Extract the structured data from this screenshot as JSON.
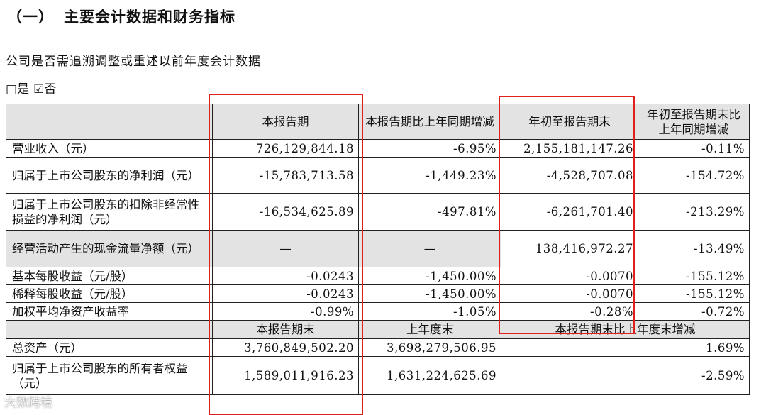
{
  "heading": {
    "number": "（一）",
    "title": "主要会计数据和财务指标"
  },
  "question": "公司是否需追溯调整或重述以前年度会计数据",
  "options": {
    "yes": "□是",
    "no": "☑否"
  },
  "table": {
    "header": [
      "",
      "本报告期",
      "本报告期比上年同期增减",
      "年初至报告期末",
      "年初至报告期末比上年同期增减"
    ],
    "rows": [
      [
        "营业收入（元）",
        "726,129,844.18",
        "-6.95%",
        "2,155,181,147.26",
        "-0.11%"
      ],
      [
        "归属于上市公司股东的净利润（元）",
        "-15,783,713.58",
        "-1,449.23%",
        "-4,528,707.08",
        "-154.72%"
      ],
      [
        "归属于上市公司股东的扣除非经常性损益的净利润（元）",
        "-16,534,625.89",
        "-497.81%",
        "-6,261,701.40",
        "-213.29%"
      ],
      [
        "经营活动产生的现金流量净额（元）",
        "—",
        "—",
        "138,416,972.27",
        "-13.49%"
      ],
      [
        "基本每股收益（元/股）",
        "-0.0243",
        "-1,450.00%",
        "-0.0070",
        "-155.12%"
      ],
      [
        "稀释每股收益（元/股）",
        "-0.0243",
        "-1,450.00%",
        "-0.0070",
        "-155.12%"
      ],
      [
        "加权平均净资产收益率",
        "-0.99%",
        "-1.05%",
        "-0.28%",
        "-0.72%"
      ]
    ],
    "header2": [
      "",
      "本报告期末",
      "上年度末",
      "本报告期末比上年度末增减"
    ],
    "rows2": [
      [
        "总资产（元）",
        "3,760,849,502.20",
        "3,698,279,506.95",
        "1.69%"
      ],
      [
        "归属于上市公司股东的所有者权益（元）",
        "1,589,011,916.23",
        "1,631,224,625.69",
        "-2.59%"
      ]
    ]
  },
  "watermark": "大数跨境",
  "colors": {
    "header_bg": "#e3e3e3",
    "highlight_box": "#e0201d",
    "border": "#222222"
  }
}
